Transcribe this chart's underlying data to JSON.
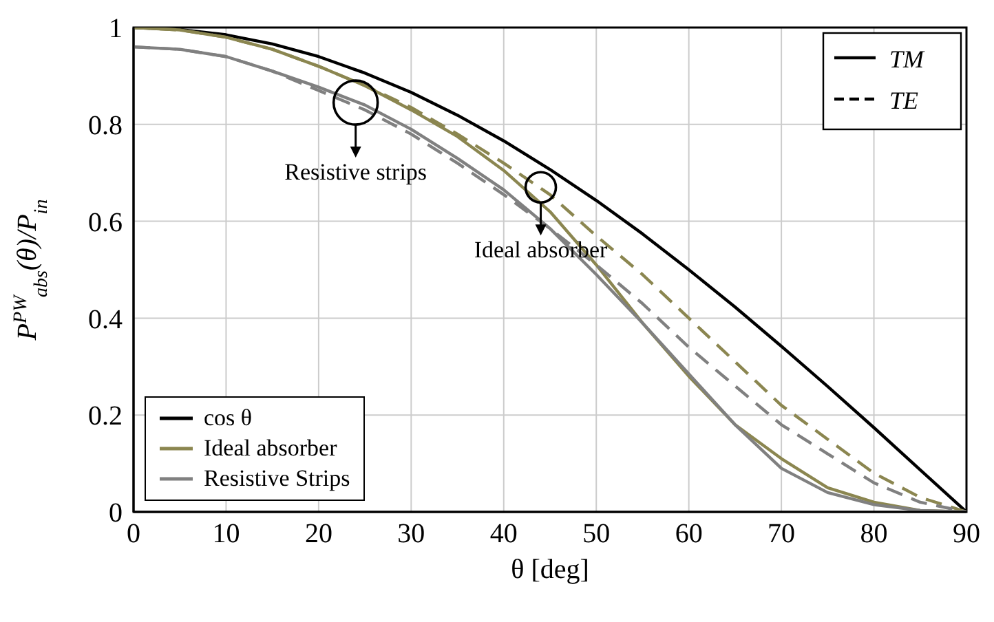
{
  "chart_data": {
    "type": "line",
    "xlabel": "θ [deg]",
    "ylabel": "P$^{PW}$$_{abs}$(θ)/P$_{in}$",
    "x": [
      0,
      5,
      10,
      15,
      20,
      25,
      30,
      35,
      40,
      45,
      50,
      55,
      60,
      65,
      70,
      75,
      80,
      85,
      90
    ],
    "series": [
      {
        "name": "cos θ",
        "color": "#000000",
        "line_style": "solid",
        "values": [
          1,
          0.996,
          0.985,
          0.966,
          0.94,
          0.906,
          0.866,
          0.819,
          0.766,
          0.707,
          0.643,
          0.574,
          0.5,
          0.423,
          0.342,
          0.259,
          0.174,
          0.087,
          0
        ]
      },
      {
        "name": "Ideal absorber",
        "color": "#8b8650",
        "line_style": "solid",
        "values": [
          1,
          0.995,
          0.98,
          0.955,
          0.92,
          0.88,
          0.83,
          0.775,
          0.705,
          0.62,
          0.51,
          0.39,
          0.28,
          0.18,
          0.11,
          0.05,
          0.02,
          0.003,
          0
        ]
      },
      {
        "color": "#8b8650",
        "line_style": "dashed",
        "values": [
          1,
          0.995,
          0.98,
          0.955,
          0.92,
          0.88,
          0.835,
          0.78,
          0.72,
          0.655,
          0.57,
          0.49,
          0.4,
          0.31,
          0.22,
          0.15,
          0.08,
          0.03,
          0
        ]
      },
      {
        "name": "Resistive Strips",
        "color": "#808080",
        "line_style": "solid",
        "values": [
          0.96,
          0.955,
          0.94,
          0.91,
          0.877,
          0.84,
          0.79,
          0.73,
          0.665,
          0.585,
          0.49,
          0.39,
          0.285,
          0.18,
          0.09,
          0.04,
          0.015,
          0.003,
          0
        ]
      },
      {
        "color": "#808080",
        "line_style": "dashed",
        "values": [
          0.96,
          0.955,
          0.94,
          0.91,
          0.87,
          0.83,
          0.78,
          0.72,
          0.655,
          0.585,
          0.51,
          0.43,
          0.34,
          0.26,
          0.18,
          0.12,
          0.06,
          0.02,
          0
        ]
      }
    ],
    "xlim": [
      0,
      90
    ],
    "xticks": [
      0,
      10,
      20,
      30,
      40,
      50,
      60,
      70,
      80,
      90
    ],
    "ylim": [
      0,
      1
    ],
    "yticks": [
      0,
      0.2,
      0.4,
      0.6,
      0.8,
      1
    ],
    "grid": true,
    "legend": "bottom left",
    "marker": "none",
    "annotations": [
      {
        "text": "Resistive strips",
        "x": 24,
        "y": 0.845
      },
      {
        "text": "Ideal absorber",
        "x": 44,
        "y": 0.67
      },
      "TM",
      "TE"
    ]
  }
}
